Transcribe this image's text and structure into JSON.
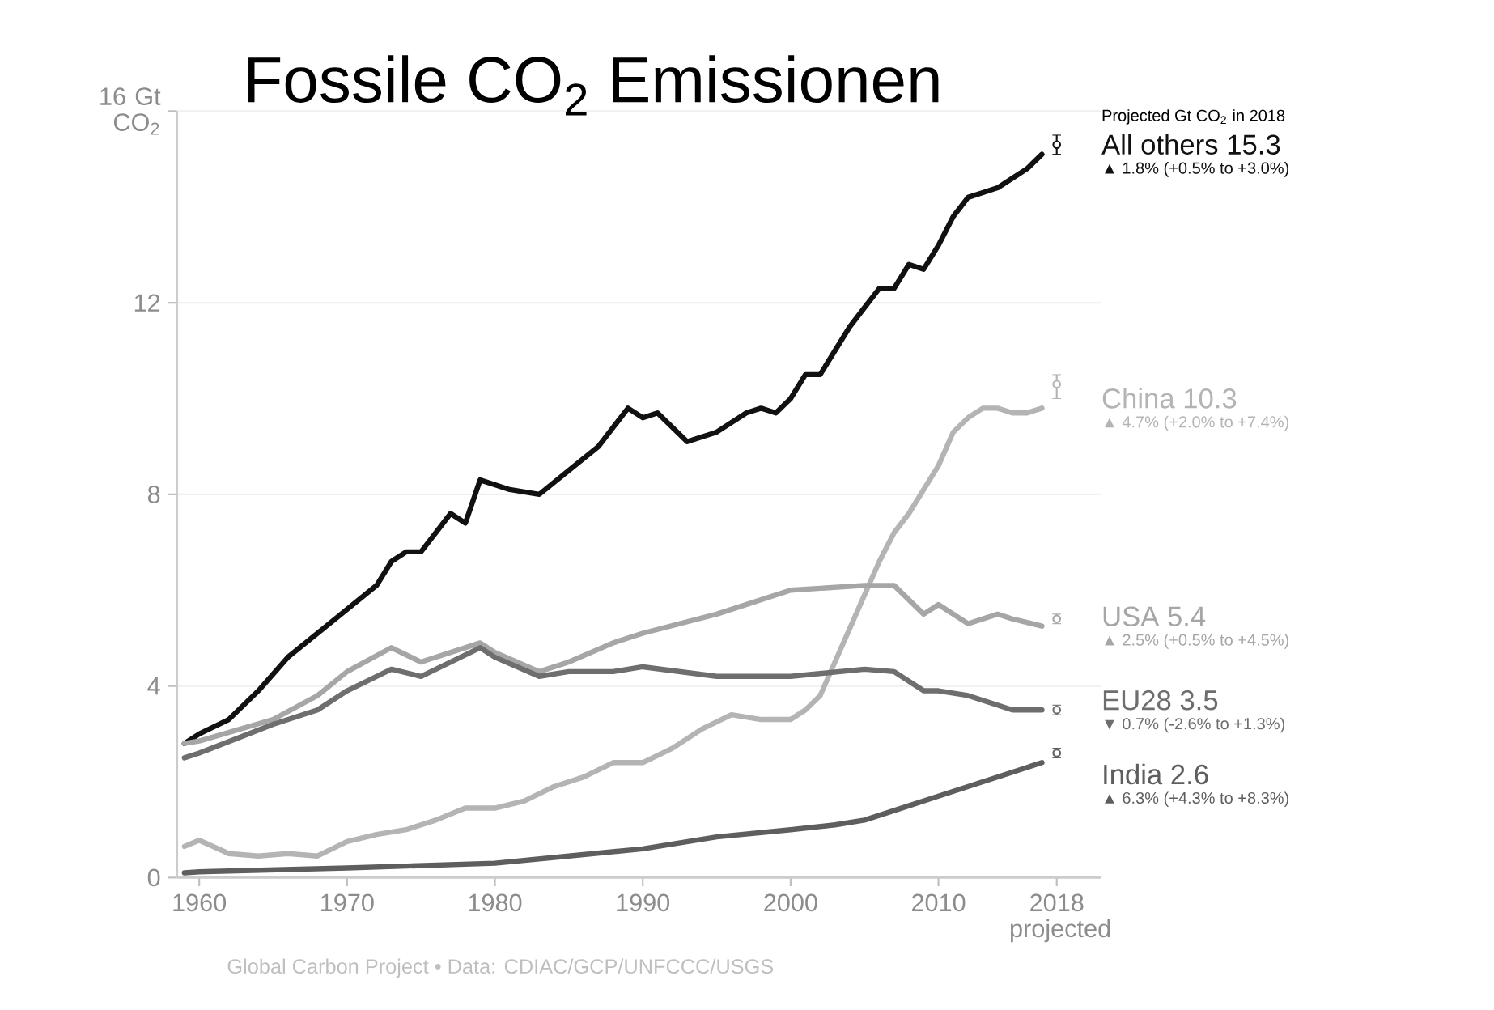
{
  "chart_data": {
    "type": "line",
    "title": "Fossile CO$_{2}$ Emissionen",
    "xlim": [
      1958.5,
      2021
    ],
    "xticks": [
      1960,
      1970,
      1980,
      1990,
      2000,
      2010,
      {
        "value": 2018,
        "label": "2018 projected"
      }
    ],
    "ylim": [
      0,
      16
    ],
    "yticks": [
      0,
      4,
      8,
      12,
      {
        "value": 16,
        "label": "16 Gt CO$_{2}$"
      }
    ],
    "grid": "y",
    "series": [
      {
        "name": "All others 15.3",
        "color": "#111111",
        "x": [
          1959,
          1960,
          1962,
          1964,
          1966,
          1968,
          1970,
          1972,
          1973,
          1974,
          1975,
          1976,
          1977,
          1978,
          1979,
          1980,
          1981,
          1983,
          1985,
          1987,
          1989,
          1990,
          1991,
          1993,
          1995,
          1997,
          1998,
          1999,
          2000,
          2001,
          2002,
          2003,
          2004,
          2005,
          2006,
          2007,
          2008,
          2009,
          2010,
          2011,
          2012,
          2013,
          2014,
          2015,
          2016,
          2017
        ],
        "values": [
          2.8,
          3.0,
          3.3,
          3.9,
          4.6,
          5.1,
          5.6,
          6.1,
          6.6,
          6.8,
          6.8,
          7.2,
          7.6,
          7.4,
          8.3,
          8.2,
          8.1,
          8.0,
          8.5,
          9.0,
          9.8,
          9.6,
          9.7,
          9.1,
          9.3,
          9.7,
          9.8,
          9.7,
          10.0,
          10.5,
          10.5,
          11.0,
          11.5,
          11.9,
          12.3,
          12.3,
          12.8,
          12.7,
          13.2,
          13.8,
          14.2,
          14.3,
          14.4,
          14.6,
          14.8,
          15.1
        ]
      },
      {
        "name": "China 10.3",
        "color": "#b4b4b4",
        "x": [
          1959,
          1960,
          1962,
          1964,
          1966,
          1968,
          1970,
          1972,
          1974,
          1976,
          1978,
          1980,
          1982,
          1984,
          1986,
          1988,
          1990,
          1992,
          1994,
          1996,
          1998,
          2000,
          2001,
          2002,
          2003,
          2004,
          2005,
          2006,
          2007,
          2008,
          2009,
          2010,
          2011,
          2012,
          2013,
          2014,
          2015,
          2016,
          2017
        ],
        "values": [
          0.65,
          0.78,
          0.5,
          0.45,
          0.5,
          0.45,
          0.75,
          0.9,
          1.0,
          1.2,
          1.45,
          1.45,
          1.6,
          1.9,
          2.1,
          2.4,
          2.4,
          2.7,
          3.1,
          3.4,
          3.3,
          3.3,
          3.5,
          3.8,
          4.5,
          5.2,
          5.9,
          6.6,
          7.2,
          7.6,
          8.1,
          8.6,
          9.3,
          9.6,
          9.8,
          9.8,
          9.7,
          9.7,
          9.8
        ]
      },
      {
        "name": "USA 5.4",
        "color": "#a6a6a6",
        "x": [
          1959,
          1960,
          1965,
          1968,
          1970,
          1973,
          1975,
          1979,
          1980,
          1983,
          1985,
          1988,
          1990,
          1995,
          2000,
          2005,
          2007,
          2009,
          2010,
          2012,
          2014,
          2015,
          2017
        ],
        "values": [
          2.8,
          2.85,
          3.3,
          3.8,
          4.3,
          4.8,
          4.5,
          4.9,
          4.7,
          4.3,
          4.5,
          4.9,
          5.1,
          5.5,
          6.0,
          6.1,
          6.1,
          5.5,
          5.7,
          5.3,
          5.5,
          5.4,
          5.25
        ]
      },
      {
        "name": "EU28 3.5",
        "color": "#6e6e6e",
        "x": [
          1959,
          1960,
          1965,
          1968,
          1970,
          1973,
          1975,
          1979,
          1980,
          1983,
          1985,
          1988,
          1990,
          1995,
          2000,
          2005,
          2007,
          2009,
          2010,
          2012,
          2014,
          2015,
          2017
        ],
        "values": [
          2.5,
          2.6,
          3.2,
          3.5,
          3.9,
          4.35,
          4.2,
          4.8,
          4.6,
          4.2,
          4.3,
          4.3,
          4.4,
          4.2,
          4.2,
          4.35,
          4.3,
          3.9,
          3.9,
          3.8,
          3.6,
          3.5,
          3.5
        ]
      },
      {
        "name": "India 2.6",
        "color": "#5e5e5e",
        "x": [
          1959,
          1960,
          1970,
          1975,
          1980,
          1985,
          1990,
          1995,
          2000,
          2003,
          2005,
          2008,
          2010,
          2012,
          2014,
          2016,
          2017
        ],
        "values": [
          0.1,
          0.12,
          0.2,
          0.25,
          0.3,
          0.45,
          0.6,
          0.85,
          1.0,
          1.1,
          1.2,
          1.5,
          1.7,
          1.9,
          2.1,
          2.3,
          2.4
        ]
      },
      {
        "type": "scatter",
        "color": "#111111",
        "x": [
          2018
        ],
        "values": [
          15.3
        ],
        "errors": [
          [
            15.1,
            15.5
          ]
        ]
      },
      {
        "type": "scatter",
        "color": "#b4b4b4",
        "x": [
          2018
        ],
        "values": [
          10.3
        ],
        "errors": [
          [
            10.0,
            10.5
          ]
        ]
      },
      {
        "type": "scatter",
        "color": "#a6a6a6",
        "x": [
          2018
        ],
        "values": [
          5.4
        ],
        "errors": [
          [
            5.3,
            5.5
          ]
        ]
      },
      {
        "type": "scatter",
        "color": "#6e6e6e",
        "x": [
          2018
        ],
        "values": [
          3.5
        ],
        "errors": [
          [
            3.4,
            3.6
          ]
        ]
      },
      {
        "type": "scatter",
        "color": "#5e5e5e",
        "x": [
          2018
        ],
        "values": [
          2.6
        ],
        "errors": [
          [
            2.5,
            2.7
          ]
        ]
      }
    ],
    "annotations": [
      "Projected Gt CO$_{2}$ in 2018",
      "▲ 1.8% (+0.5% to +3.0%)",
      "▲ 4.7% (+2.0% to +7.4%)",
      "▲ 2.5% (+0.5% to +4.5%)",
      "▼ 0.7% (-2.6% to +1.3%)",
      "▲ 6.3% (+4.3% to +8.3%)",
      "Global Carbon Project • Data: CDIAC/GCP/UNFCCC/USGS"
    ]
  }
}
